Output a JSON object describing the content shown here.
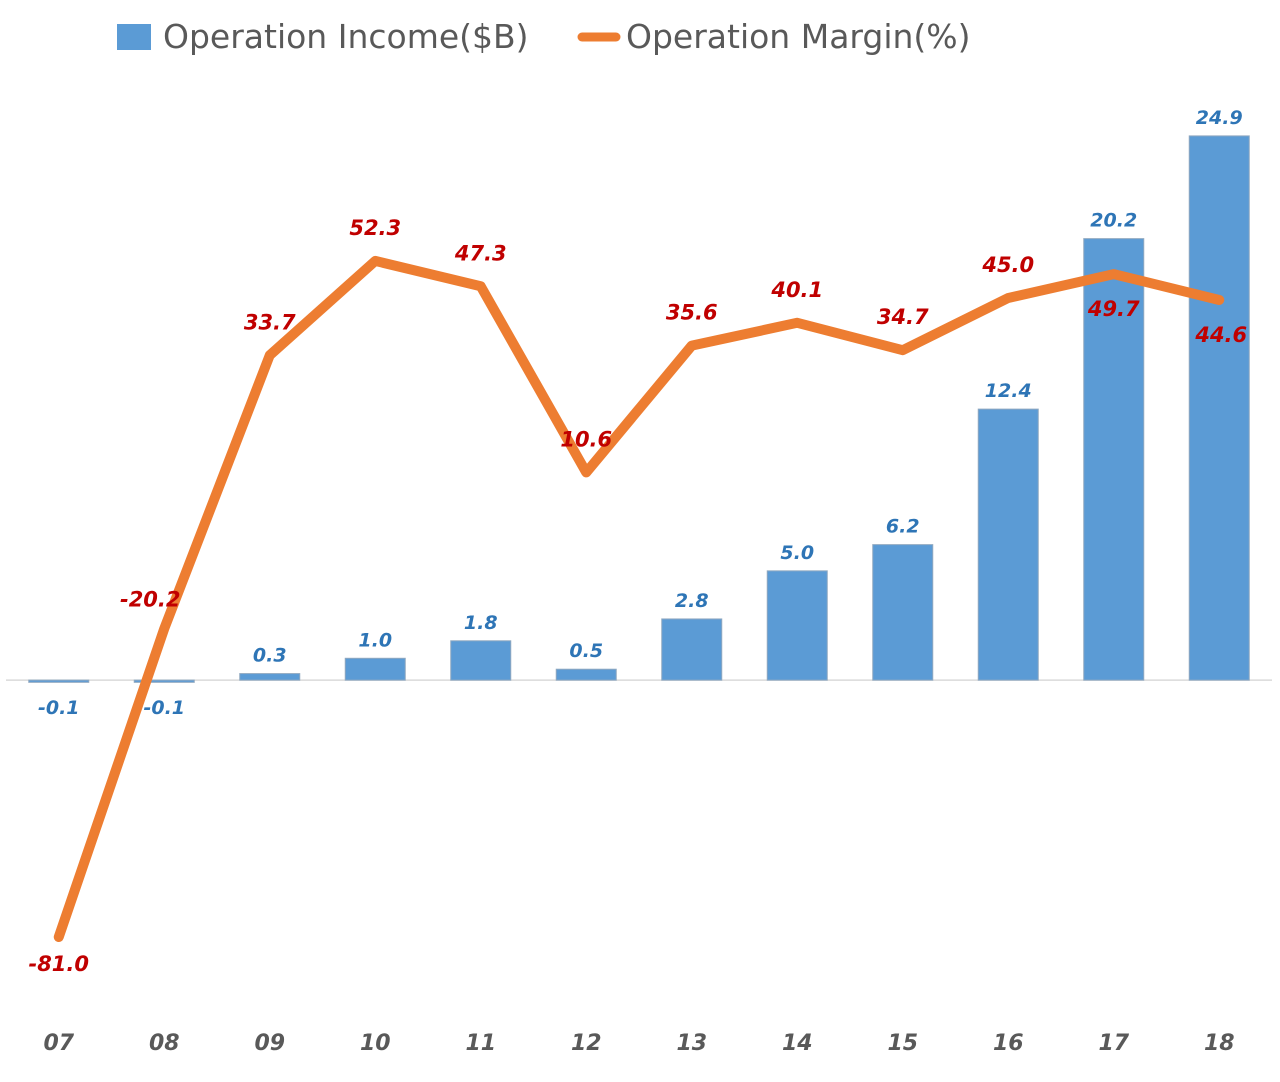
{
  "chart_data": {
    "type": "bar",
    "title": "",
    "categories": [
      "07",
      "08",
      "09",
      "10",
      "11",
      "12",
      "13",
      "14",
      "15",
      "16",
      "17",
      "18"
    ],
    "series": [
      {
        "name": "Operation Income($B)",
        "type": "bar",
        "values": [
          -0.1,
          -0.1,
          0.3,
          1.0,
          1.8,
          0.5,
          2.8,
          5.0,
          6.2,
          12.4,
          20.2,
          24.9
        ],
        "labels": [
          "-0.1",
          "-0.1",
          "0.3",
          "1.0",
          "1.8",
          "0.5",
          "2.8",
          "5.0",
          "6.2",
          "12.4",
          "20.2",
          "24.9"
        ],
        "color": "#5B9BD5",
        "label_color": "#2E75B6"
      },
      {
        "name": "Operation Margin(%)",
        "type": "line",
        "values": [
          -81.0,
          -20.2,
          33.7,
          52.3,
          47.3,
          10.6,
          35.6,
          40.1,
          34.7,
          45.0,
          49.7,
          44.6
        ],
        "labels": [
          "-81.0",
          "-20.2",
          "33.7",
          "52.3",
          "47.3",
          "10.6",
          "35.6",
          "40.1",
          "34.7",
          "45.0",
          "49.7",
          "44.6"
        ],
        "color": "#ED7D31",
        "label_color": "#C00000"
      }
    ],
    "primary_axis": {
      "ylim": [
        -15,
        27
      ],
      "visible": false
    },
    "secondary_axis": {
      "ylim": [
        -95,
        86
      ],
      "visible": false
    },
    "grid": false,
    "legend": "top"
  }
}
